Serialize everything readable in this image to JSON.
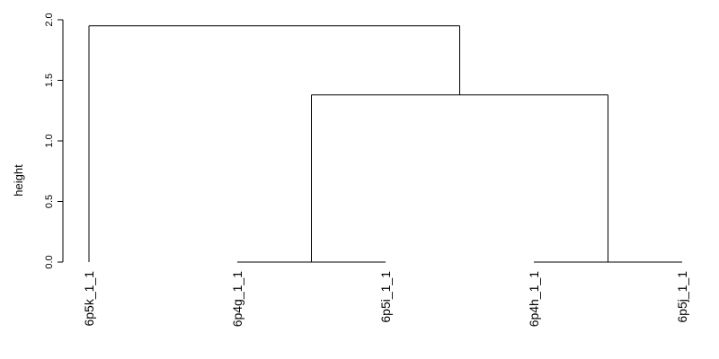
{
  "chart_data": {
    "type": "dendrogram",
    "title": "",
    "ylabel": "height",
    "ylim": [
      0,
      2.0
    ],
    "yticks": [
      0.0,
      0.5,
      1.0,
      1.5,
      2.0
    ],
    "ytick_labels": [
      "0.0",
      "0.5",
      "1.0",
      "1.5",
      "2.0"
    ],
    "leaves": [
      "6p5k_1_1",
      "6p4g_1_1",
      "6p5i_1_1",
      "6p4h_1_1",
      "6p5j_1_1"
    ],
    "merges": [
      {
        "left": "6p4g_1_1",
        "right": "6p5i_1_1",
        "height": 0.0
      },
      {
        "left": "6p4h_1_1",
        "right": "6p5j_1_1",
        "height": 0.0
      },
      {
        "left": "6p4g_1_1+6p5i_1_1",
        "right": "6p4h_1_1+6p5j_1_1",
        "height": 1.38
      },
      {
        "left": "6p5k_1_1",
        "right": "6p4g_1_1+6p5i_1_1+6p4h_1_1+6p5j_1_1",
        "height": 1.95
      }
    ]
  }
}
